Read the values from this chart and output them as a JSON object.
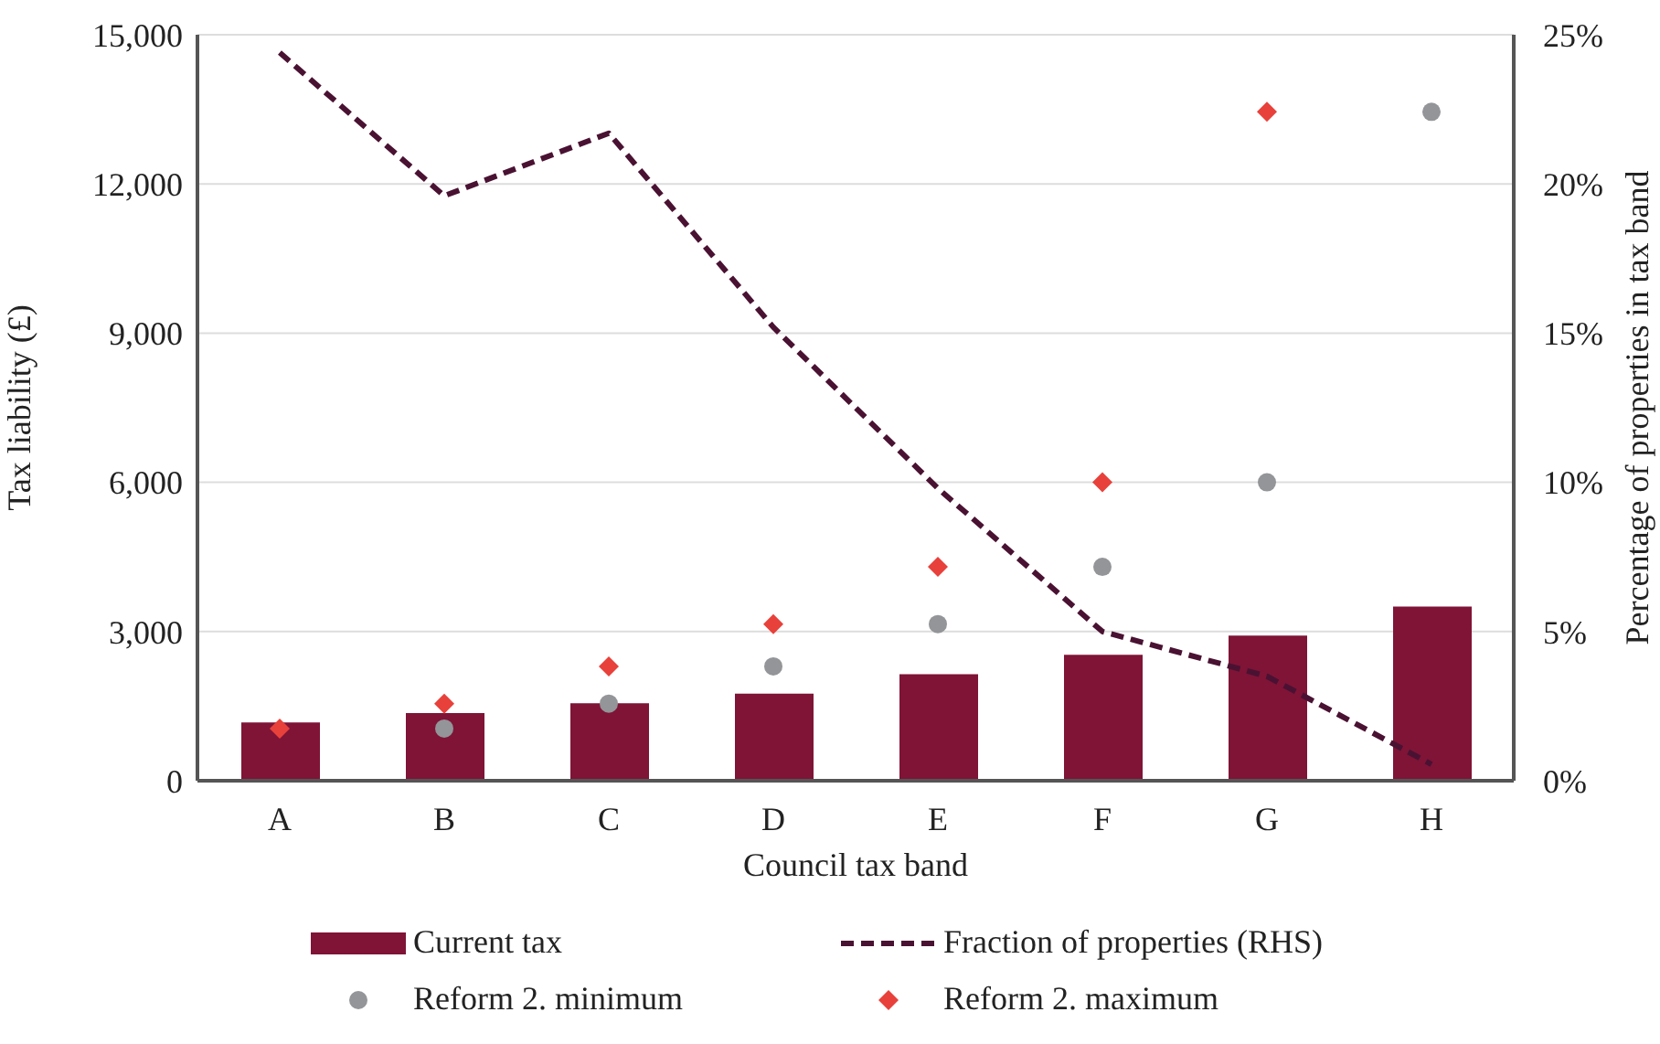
{
  "chart_data": {
    "type": "bar",
    "xlabel": "Council tax band",
    "ylabel": "Tax liability (£)",
    "y2label": "Percentage of properties in tax band",
    "categories": [
      "A",
      "B",
      "C",
      "D",
      "E",
      "F",
      "G",
      "H"
    ],
    "series": [
      {
        "name": "Current tax",
        "color": "#7f1437",
        "values": [
          1170,
          1360,
          1560,
          1750,
          2140,
          2530,
          2920,
          3500
        ]
      },
      {
        "name": "Fraction of properties (RHS)",
        "type": "line",
        "axis": "y2",
        "color": "#4a1232",
        "line_style": "dashed",
        "marker": "none",
        "values": [
          24.4,
          19.6,
          21.7,
          15.2,
          9.8,
          5.0,
          3.5,
          0.55
        ]
      },
      {
        "name": "Reform 2. minimum",
        "type": "scatter",
        "color": "#939598",
        "marker": "circle",
        "values": [
          null,
          1050,
          1550,
          2300,
          3150,
          4300,
          6000,
          13450
        ]
      },
      {
        "name": "Reform 2. maximum",
        "type": "scatter",
        "color": "#e8413b",
        "marker": "diamond",
        "values": [
          1050,
          1550,
          2300,
          3150,
          4300,
          6000,
          13450,
          null
        ]
      }
    ],
    "ylim": [
      0,
      15000
    ],
    "yticks": [
      {
        "value": 0,
        "label": "0"
      },
      {
        "value": 3000,
        "label": "3,000"
      },
      {
        "value": 6000,
        "label": "6,000"
      },
      {
        "value": 9000,
        "label": "9,000"
      },
      {
        "value": 12000,
        "label": "12,000"
      },
      {
        "value": 15000,
        "label": "15,000"
      }
    ],
    "y2lim": [
      0,
      25
    ],
    "y2ticks": [
      {
        "value": 0,
        "label": "0%"
      },
      {
        "value": 5,
        "label": "5%"
      },
      {
        "value": 10,
        "label": "10%"
      },
      {
        "value": 15,
        "label": "15%"
      },
      {
        "value": 20,
        "label": "20%"
      },
      {
        "value": 25,
        "label": "25%"
      }
    ],
    "grid": "y",
    "legend": "bottom"
  }
}
